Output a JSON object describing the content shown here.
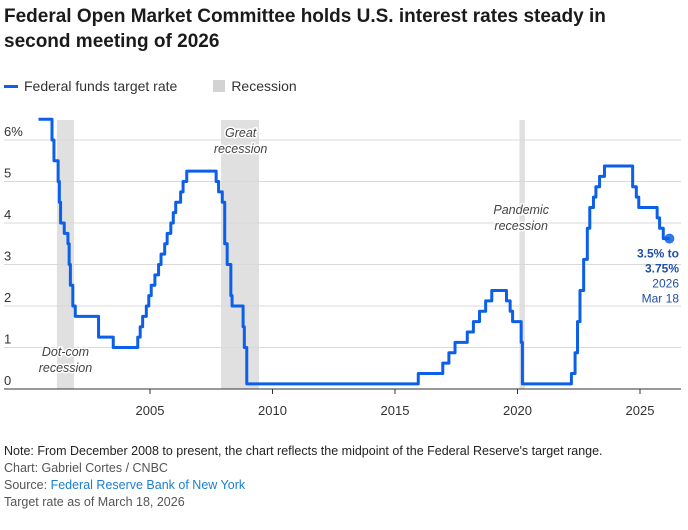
{
  "title": "Federal Open Market Committee holds U.S. interest rates steady in second meeting of 2026",
  "legend": {
    "line_label": "Federal funds target rate",
    "shade_label": "Recession"
  },
  "colors": {
    "line": "#0b5fe8",
    "recession": "#e0e0e0",
    "grid": "#d9d9d9",
    "axis": "#333333",
    "annotation": "#1f4fa8"
  },
  "chart_data": {
    "type": "line",
    "title": "Federal Open Market Committee holds U.S. interest rates steady in second meeting of 2026",
    "xlabel": "",
    "ylabel": "",
    "xlim": [
      2000.0,
      2026.6
    ],
    "ylim": [
      0,
      6.5
    ],
    "grid": true,
    "legend_position": "top-left",
    "x_ticks": [
      2005,
      2010,
      2015,
      2020,
      2025
    ],
    "y_ticks": [
      {
        "value": 0,
        "label": "0"
      },
      {
        "value": 1,
        "label": "1"
      },
      {
        "value": 2,
        "label": "2"
      },
      {
        "value": 3,
        "label": "3"
      },
      {
        "value": 4,
        "label": "4"
      },
      {
        "value": 5,
        "label": "5"
      },
      {
        "value": 6,
        "label": "6%"
      }
    ],
    "recessions": [
      {
        "name": "Dot-com recession",
        "label_lines": [
          "Dot-com",
          "recession"
        ],
        "start": 2001.2,
        "end": 2001.9
      },
      {
        "name": "Great recession",
        "label_lines": [
          "Great",
          "recession"
        ],
        "start": 2007.9,
        "end": 2009.45
      },
      {
        "name": "Pandemic recession",
        "label_lines": [
          "Pandemic",
          "recession"
        ],
        "start": 2020.08,
        "end": 2020.3
      }
    ],
    "series": [
      {
        "name": "Federal funds target rate",
        "step": true,
        "points": [
          [
            2000.45,
            6.5
          ],
          [
            2001.0,
            6.0
          ],
          [
            2001.08,
            5.5
          ],
          [
            2001.25,
            5.0
          ],
          [
            2001.3,
            4.5
          ],
          [
            2001.35,
            4.0
          ],
          [
            2001.5,
            3.75
          ],
          [
            2001.65,
            3.5
          ],
          [
            2001.7,
            3.0
          ],
          [
            2001.75,
            2.5
          ],
          [
            2001.85,
            2.0
          ],
          [
            2001.95,
            1.75
          ],
          [
            2002.9,
            1.25
          ],
          [
            2003.5,
            1.0
          ],
          [
            2004.5,
            1.25
          ],
          [
            2004.6,
            1.5
          ],
          [
            2004.7,
            1.75
          ],
          [
            2004.85,
            2.0
          ],
          [
            2004.95,
            2.25
          ],
          [
            2005.05,
            2.5
          ],
          [
            2005.2,
            2.75
          ],
          [
            2005.35,
            3.0
          ],
          [
            2005.45,
            3.25
          ],
          [
            2005.6,
            3.5
          ],
          [
            2005.7,
            3.75
          ],
          [
            2005.85,
            4.0
          ],
          [
            2005.95,
            4.25
          ],
          [
            2006.05,
            4.5
          ],
          [
            2006.25,
            4.75
          ],
          [
            2006.35,
            5.0
          ],
          [
            2006.5,
            5.25
          ],
          [
            2007.7,
            5.0
          ],
          [
            2007.8,
            4.75
          ],
          [
            2007.95,
            4.5
          ],
          [
            2008.05,
            3.5
          ],
          [
            2008.15,
            3.0
          ],
          [
            2008.3,
            2.25
          ],
          [
            2008.35,
            2.0
          ],
          [
            2008.8,
            1.5
          ],
          [
            2008.85,
            1.0
          ],
          [
            2008.95,
            0.125
          ],
          [
            2015.95,
            0.375
          ],
          [
            2016.95,
            0.625
          ],
          [
            2017.2,
            0.875
          ],
          [
            2017.45,
            1.125
          ],
          [
            2017.95,
            1.375
          ],
          [
            2018.2,
            1.625
          ],
          [
            2018.45,
            1.875
          ],
          [
            2018.7,
            2.125
          ],
          [
            2018.95,
            2.375
          ],
          [
            2019.55,
            2.125
          ],
          [
            2019.7,
            1.875
          ],
          [
            2019.8,
            1.625
          ],
          [
            2020.15,
            1.125
          ],
          [
            2020.2,
            0.125
          ],
          [
            2022.2,
            0.375
          ],
          [
            2022.35,
            0.875
          ],
          [
            2022.45,
            1.625
          ],
          [
            2022.55,
            2.375
          ],
          [
            2022.7,
            3.125
          ],
          [
            2022.85,
            3.875
          ],
          [
            2022.95,
            4.375
          ],
          [
            2023.1,
            4.625
          ],
          [
            2023.2,
            4.875
          ],
          [
            2023.35,
            5.125
          ],
          [
            2023.55,
            5.375
          ],
          [
            2024.7,
            4.875
          ],
          [
            2024.85,
            4.625
          ],
          [
            2024.95,
            4.375
          ],
          [
            2025.7,
            4.125
          ],
          [
            2025.8,
            3.875
          ],
          [
            2025.95,
            3.625
          ],
          [
            2026.2,
            3.625
          ]
        ]
      }
    ],
    "end_annotation": {
      "value": 3.625,
      "date": 2026.2,
      "lines_bold": [
        "3.5% to",
        "3.75%"
      ],
      "lines_regular": [
        "2026",
        "Mar 18"
      ]
    }
  },
  "footer": {
    "note": "Note: From December 2008 to present, the chart reflects the midpoint of the Federal Reserve's target range.",
    "credit": "Chart: Gabriel Cortes / CNBC",
    "source_prefix": "Source: ",
    "source_link": "Federal Reserve Bank of New York",
    "as_of": "Target rate as of March 18, 2026"
  }
}
